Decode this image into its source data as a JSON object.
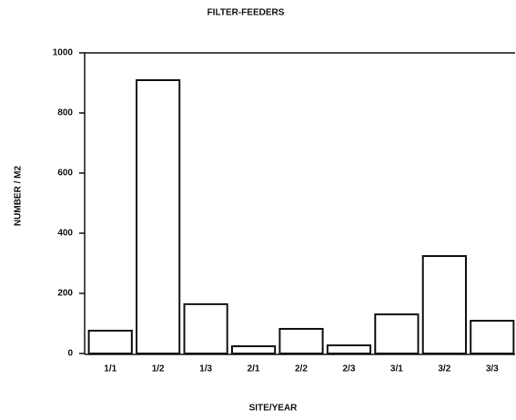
{
  "chart_data": {
    "type": "bar",
    "title": "FILTER-FEEDERS",
    "x_label": "SITE/YEAR",
    "y_label": "NUMBER / M2",
    "categories": [
      "1/1",
      "1/2",
      "1/3",
      "2/1",
      "2/2",
      "2/3",
      "3/1",
      "3/2",
      "3/3"
    ],
    "values": [
      76,
      909,
      164,
      24,
      82,
      27,
      130,
      324,
      109
    ],
    "color": "#ffffff",
    "ylim": [
      0,
      1000
    ],
    "yticks": [
      0,
      200,
      400,
      600,
      800,
      1000
    ],
    "grid": false
  }
}
